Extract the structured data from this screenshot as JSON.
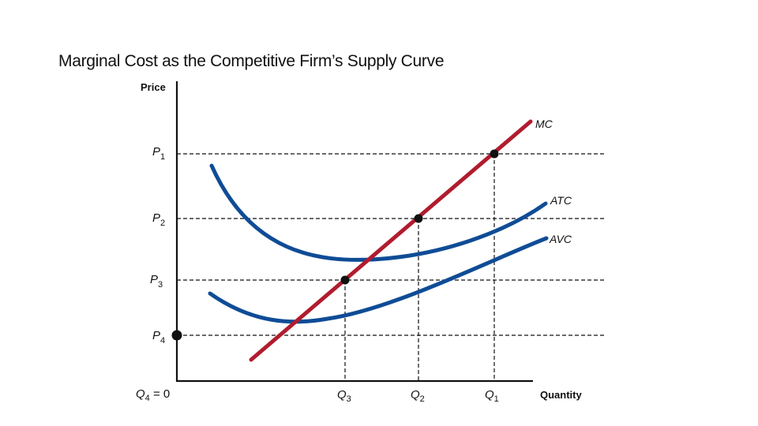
{
  "title": "Marginal Cost as the Competitive Firm’s Supply Curve",
  "chart_data": {
    "type": "line",
    "ylabel": "Price",
    "xlabel": "Quantity",
    "grid": false,
    "series": [
      {
        "name": "MC",
        "color": "#b01c2e"
      },
      {
        "name": "ATC",
        "color": "#0f4c96"
      },
      {
        "name": "AVC",
        "color": "#0f4c96"
      }
    ],
    "price_levels": [
      {
        "id": "p1",
        "base": "P",
        "sub": "1"
      },
      {
        "id": "p2",
        "base": "P",
        "sub": "2"
      },
      {
        "id": "p3",
        "base": "P",
        "sub": "3"
      },
      {
        "id": "p4",
        "base": "P",
        "sub": "4"
      }
    ],
    "quantity_levels": [
      {
        "id": "q4",
        "base": "Q",
        "sub": "4",
        "suffix": " = 0"
      },
      {
        "id": "q3",
        "base": "Q",
        "sub": "3",
        "suffix": ""
      },
      {
        "id": "q2",
        "base": "Q",
        "sub": "2",
        "suffix": ""
      },
      {
        "id": "q1",
        "base": "Q",
        "sub": "1",
        "suffix": ""
      }
    ]
  }
}
